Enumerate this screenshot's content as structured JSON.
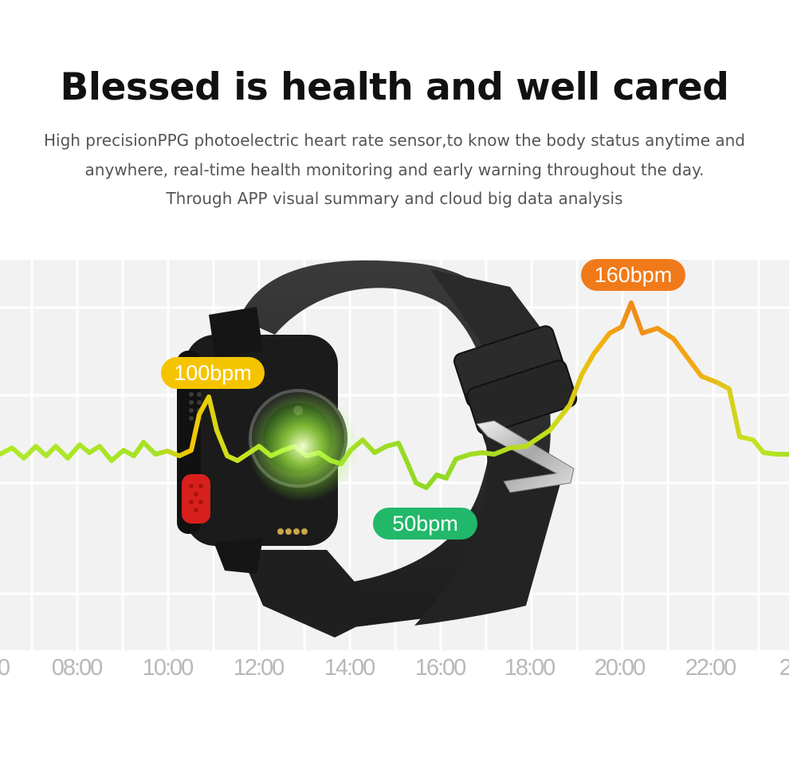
{
  "heading": "Blessed is health and well cared",
  "description": {
    "line1": "High precisionPPG photoelectric heart rate sensor,to know the body status anytime and",
    "line2": "anywhere, real-time health monitoring and early warning throughout the day.",
    "line3": "Through APP visual summary and cloud big data analysis"
  },
  "time_axis": [
    "0",
    "08:00",
    "10:00",
    "12:00",
    "14:00",
    "16:00",
    "18:00",
    "20:00",
    "22:00",
    "2"
  ],
  "labels": {
    "high": "160bpm",
    "mid": "100bpm",
    "low": "50bpm"
  },
  "colors": {
    "high": "#f07a1a",
    "mid": "#f5c400",
    "low": "#22b86a",
    "line_green": "#9be024"
  }
}
